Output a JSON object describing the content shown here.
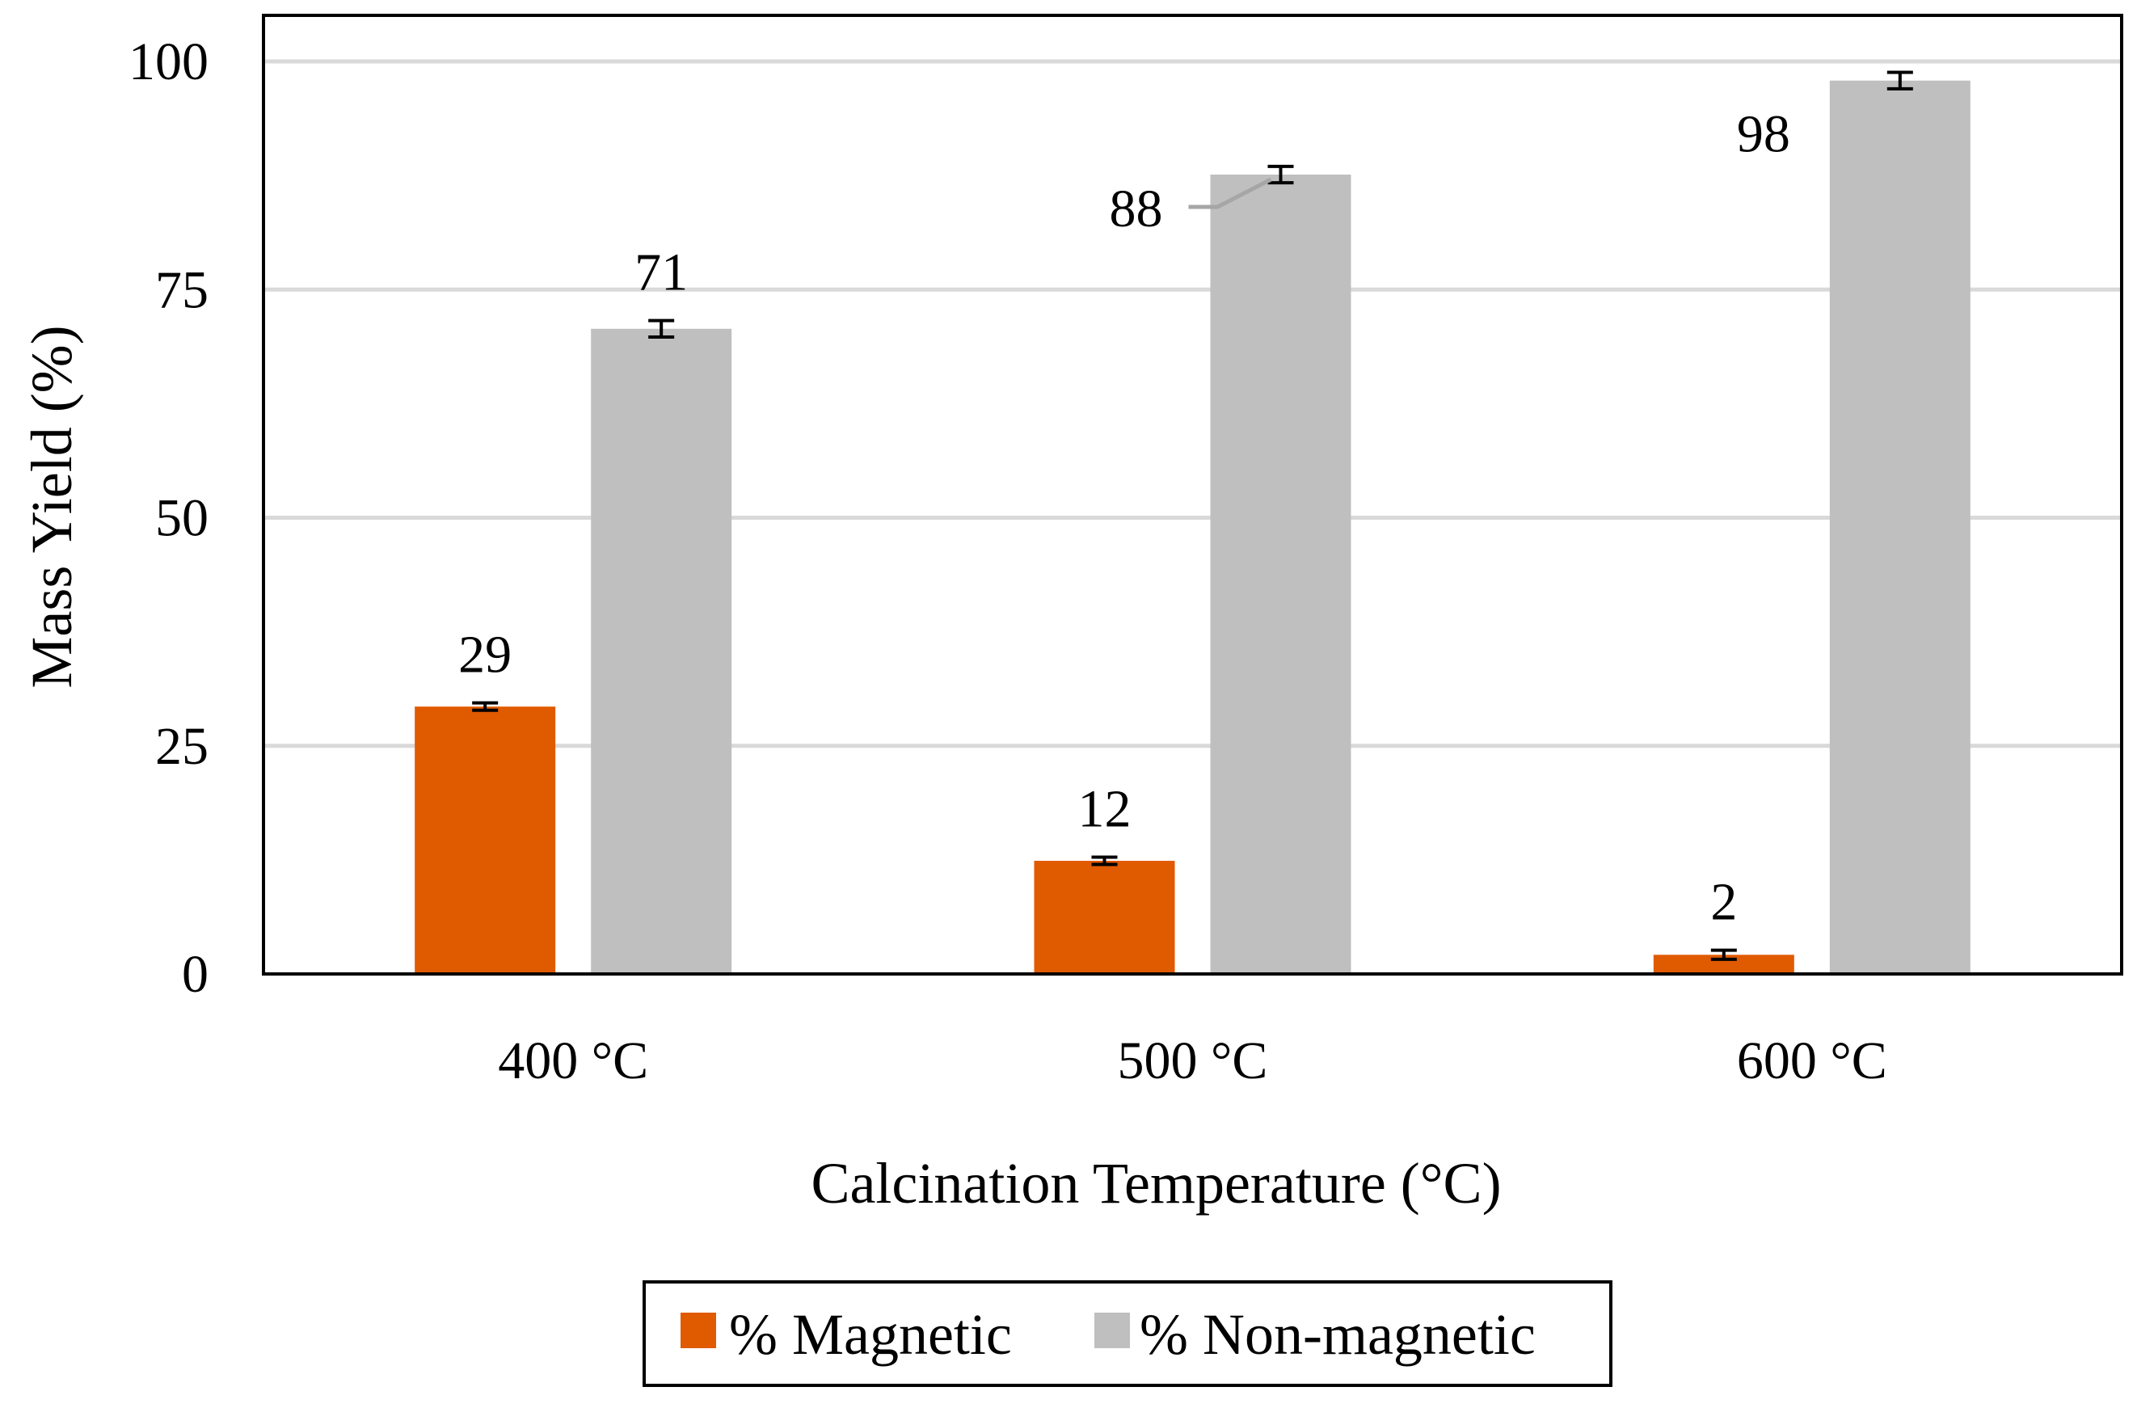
{
  "chart_data": {
    "type": "bar",
    "title": "",
    "xlabel": "Calcination Temperature (°C)",
    "ylabel": "Mass Yield (%)",
    "ylim": [
      0,
      100
    ],
    "yticks": [
      0,
      25,
      50,
      75,
      100
    ],
    "grid": true,
    "legend_position": "bottom",
    "categories": [
      "400 °C",
      "500 °C",
      "600 °C"
    ],
    "series": [
      {
        "name": "% Magnetic",
        "color": "#E05A00",
        "values": [
          29.3,
          12.4,
          2.1
        ],
        "errors": [
          0.4,
          0.4,
          0.5
        ],
        "labels": [
          "29",
          "12",
          "2"
        ]
      },
      {
        "name": "% Non-magnetic",
        "color": "#BFBFBF",
        "values": [
          70.7,
          87.6,
          97.9
        ],
        "errors": [
          0.9,
          0.9,
          0.9
        ],
        "labels": [
          "71",
          "88",
          "98"
        ]
      }
    ]
  }
}
